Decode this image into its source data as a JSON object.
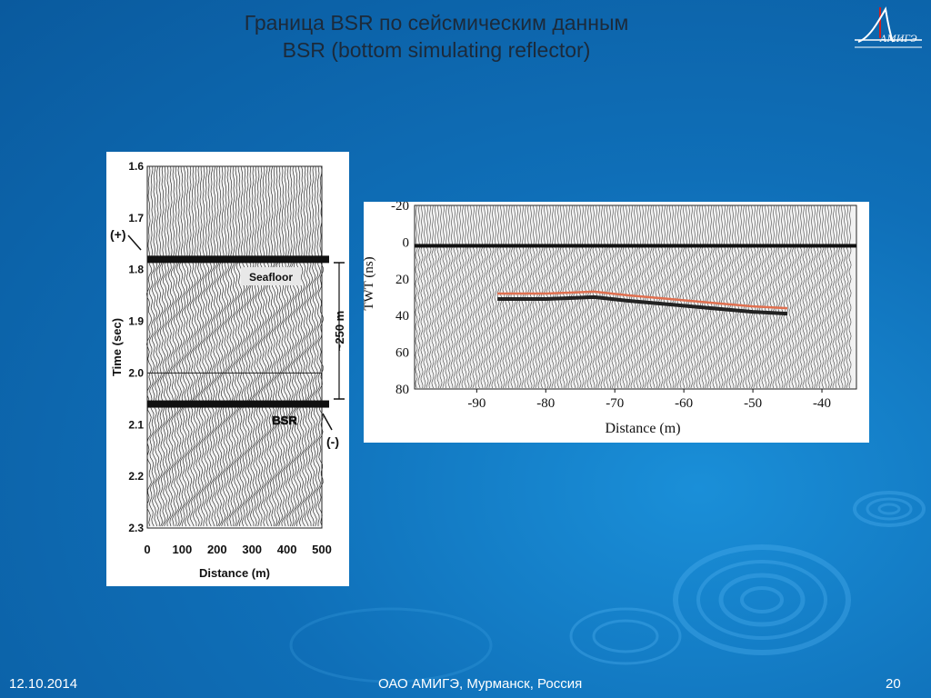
{
  "slide": {
    "title_line1": "Граница BSR по сейсмическим данным",
    "title_line2": "BSR (bottom simulating reflector)",
    "logo_text": "АМИГЭ",
    "footer": {
      "date": "12.10.2014",
      "organization": "ОАО АМИГЭ, Мурманск, Россия",
      "page_number": "20"
    },
    "colors": {
      "background": "#0f6fb8",
      "title_text": "#1c2a3a",
      "footer_text": "#ffffff",
      "reflector_line": "#e07050"
    }
  },
  "chart_data": [
    {
      "type": "scatter",
      "title": "",
      "xlabel": "Distance (m)",
      "ylabel": "Time (sec)",
      "x_ticks": [
        "0",
        "100",
        "200",
        "300",
        "400",
        "500"
      ],
      "y_ticks": [
        "1.6",
        "1.7",
        "1.8",
        "1.9",
        "2.0",
        "2.1",
        "2.2",
        "2.3"
      ],
      "xlim": [
        0,
        500
      ],
      "ylim": [
        1.6,
        2.3
      ],
      "y_inverted": true,
      "annotations": {
        "seafloor": "Seafloor",
        "bsr": "BSR",
        "positive": "(+)",
        "negative": "(-)",
        "thickness": "~250 m"
      },
      "reflectors": [
        {
          "name": "seafloor",
          "time": 1.78
        },
        {
          "name": "bsr",
          "time": 2.06
        }
      ]
    },
    {
      "type": "line",
      "title": "",
      "xlabel": "Distance (m)",
      "ylabel": "TWT (ns)",
      "x_ticks": [
        "-90",
        "-80",
        "-70",
        "-60",
        "-50",
        "-40"
      ],
      "y_ticks": [
        "-20",
        "0",
        "20",
        "40",
        "60",
        "80"
      ],
      "xlim": [
        -99,
        -35
      ],
      "ylim": [
        -20,
        80
      ],
      "y_inverted": true,
      "series": [
        {
          "x": [
            -87,
            -80,
            -73,
            -68,
            -62,
            -56,
            -50,
            -45
          ],
          "y": [
            28,
            28,
            27,
            29,
            31,
            33,
            35,
            36
          ]
        }
      ],
      "surface_level": 2
    }
  ]
}
